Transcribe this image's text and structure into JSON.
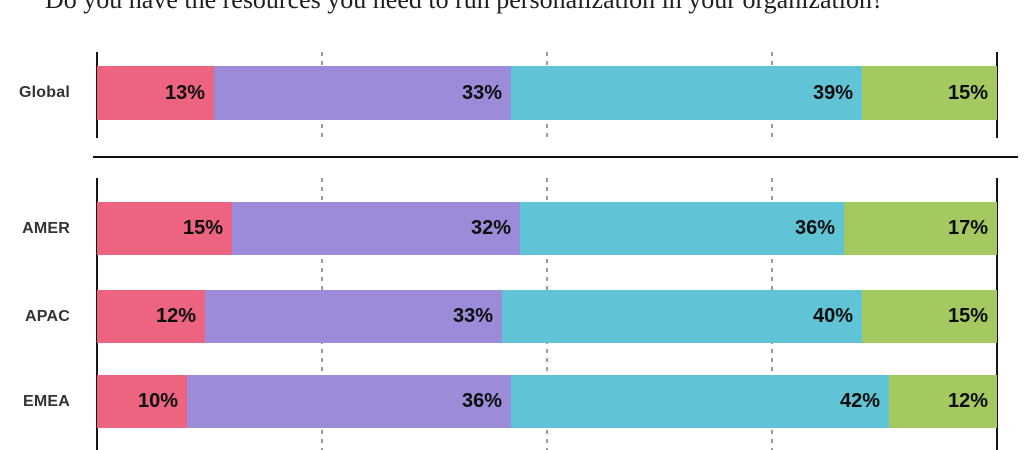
{
  "chart_data": {
    "type": "bar",
    "stacked": true,
    "orientation": "horizontal",
    "title": "Do you have the resources you need to run personalization in your organization?",
    "value_suffix": "%",
    "xlim": [
      0,
      100
    ],
    "gridlines_pct": [
      25,
      50,
      75
    ],
    "grid_style": "dashed",
    "legend": "none",
    "segment_colors": [
      "#ec6480",
      "#9c8bd9",
      "#60c3d6",
      "#a3c960"
    ],
    "groups": [
      {
        "name": "global",
        "rows": [
          {
            "label": "Global",
            "values": [
              13,
              33,
              39,
              15
            ]
          }
        ]
      },
      {
        "name": "regions",
        "rows": [
          {
            "label": "AMER",
            "values": [
              15,
              32,
              36,
              17
            ]
          },
          {
            "label": "APAC",
            "values": [
              12,
              33,
              40,
              15
            ]
          },
          {
            "label": "EMEA",
            "values": [
              10,
              36,
              42,
              12
            ]
          }
        ]
      }
    ]
  }
}
